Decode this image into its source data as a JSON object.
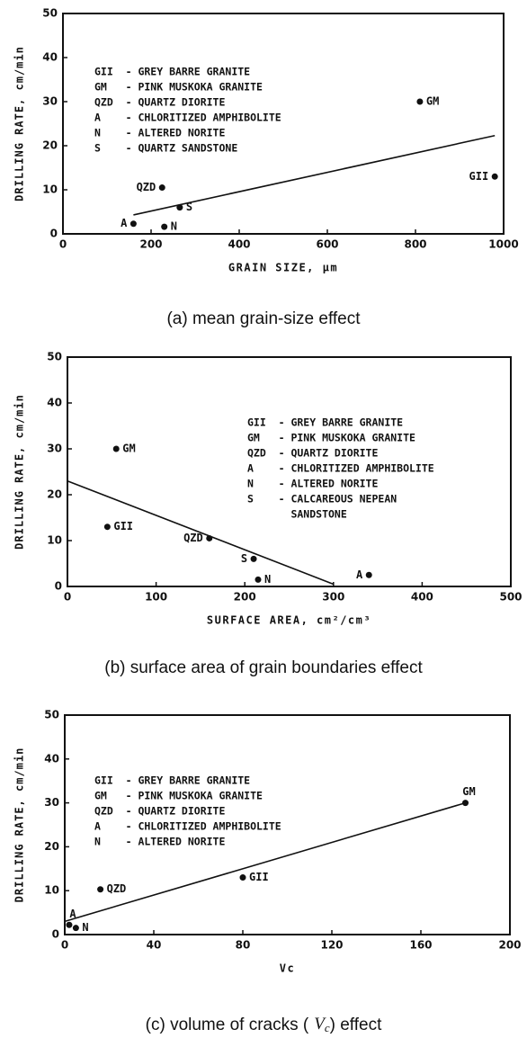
{
  "chart_data": [
    {
      "type": "scatter",
      "caption": "(a) mean grain-size effect",
      "xlabel": "GRAIN SIZE, μm",
      "ylabel": "DRILLING RATE, cm/min",
      "xlim": [
        0,
        1000
      ],
      "ylim": [
        0,
        50
      ],
      "xticks": [
        0,
        200,
        400,
        600,
        800,
        1000
      ],
      "yticks": [
        0,
        10,
        20,
        30,
        40,
        50
      ],
      "point_labels": [
        "A",
        "N",
        "S",
        "QZD",
        "GM",
        "GII"
      ],
      "x": [
        160,
        230,
        265,
        225,
        810,
        980
      ],
      "values": [
        2.3,
        1.6,
        6,
        10.5,
        30,
        13
      ],
      "trend": {
        "x": [
          160,
          980
        ],
        "values": [
          4.3,
          22.3
        ]
      },
      "legend": [
        "GII  - GREY BARRE GRANITE",
        "GM   - PINK MUSKOKA GRANITE",
        "QZD  - QUARTZ DIORITE",
        "A    - CHLORITIZED AMPHIBOLITE",
        "N    - ALTERED NORITE",
        "S    - QUARTZ SANDSTONE"
      ]
    },
    {
      "type": "scatter",
      "caption": "(b) surface area of grain boundaries effect",
      "xlabel": "SURFACE AREA, cm²/cm³",
      "ylabel": "DRILLING RATE, cm/min",
      "xlim": [
        0,
        500
      ],
      "ylim": [
        0,
        50
      ],
      "xticks": [
        0,
        100,
        200,
        300,
        400,
        500
      ],
      "yticks": [
        0,
        10,
        20,
        30,
        40,
        50
      ],
      "point_labels": [
        "GM",
        "GII",
        "QZD",
        "S",
        "N",
        "A"
      ],
      "x": [
        55,
        45,
        160,
        210,
        215,
        340
      ],
      "values": [
        30,
        13,
        10.5,
        6,
        1.5,
        2.5
      ],
      "trend": {
        "x": [
          0,
          300
        ],
        "values": [
          23,
          0.5
        ]
      },
      "legend": [
        "GII  - GREY BARRE GRANITE",
        "GM   - PINK MUSKOKA GRANITE",
        "QZD  - QUARTZ DIORITE",
        "A    - CHLORITIZED AMPHIBOLITE",
        "N    - ALTERED NORITE",
        "S    - CALCAREOUS NEPEAN",
        "       SANDSTONE"
      ]
    },
    {
      "type": "scatter",
      "caption": "(c) volume of cracks (",
      "caption_var": "V",
      "caption_sub": "c",
      "caption_end": ") effect",
      "xlabel": "Vc",
      "ylabel": "DRILLING RATE, cm/min",
      "xlim": [
        0,
        200
      ],
      "ylim": [
        0,
        50
      ],
      "xticks": [
        0,
        40,
        80,
        120,
        160,
        200
      ],
      "yticks": [
        0,
        10,
        20,
        30,
        40,
        50
      ],
      "point_labels": [
        "A",
        "N",
        "QZD",
        "GII",
        "GM"
      ],
      "x": [
        2,
        5,
        16,
        80,
        180
      ],
      "values": [
        2.2,
        1.5,
        10.3,
        13,
        30
      ],
      "trend": {
        "x": [
          0,
          180
        ],
        "values": [
          3,
          30
        ]
      },
      "legend": [
        "GII  - GREY BARRE GRANITE",
        "GM   - PINK MUSKOKA GRANITE",
        "QZD  - QUARTZ DIORITE",
        "A    - CHLORITIZED AMPHIBOLITE",
        "N    - ALTERED NORITE"
      ]
    }
  ]
}
